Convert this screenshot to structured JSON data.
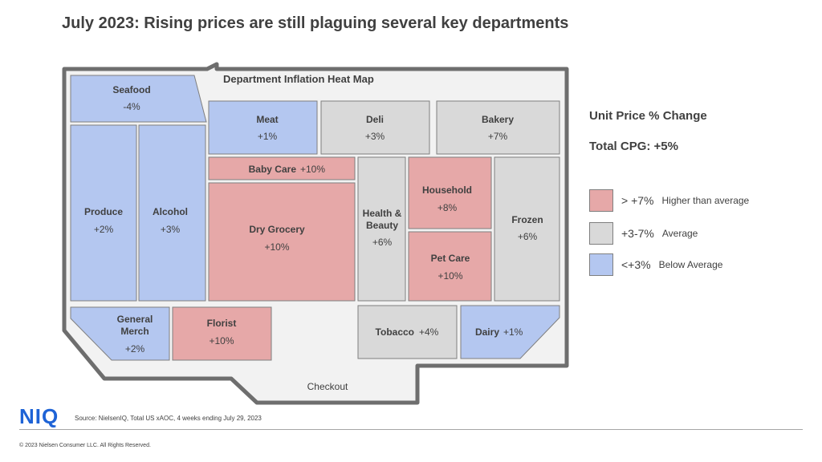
{
  "title": "July 2023: Rising prices are still plaguing several key departments",
  "map": {
    "title": "Department Inflation Heat Map",
    "checkout": "Checkout"
  },
  "departments": {
    "seafood": {
      "name": "Seafood",
      "value": "-4%",
      "category": "below"
    },
    "produce": {
      "name": "Produce",
      "value": "+2%",
      "category": "below"
    },
    "alcohol": {
      "name": "Alcohol",
      "value": "+3%",
      "category": "below"
    },
    "meat": {
      "name": "Meat",
      "value": "+1%",
      "category": "below"
    },
    "deli": {
      "name": "Deli",
      "value": "+3%",
      "category": "average"
    },
    "bakery": {
      "name": "Bakery",
      "value": "+7%",
      "category": "average"
    },
    "baby_care": {
      "name": "Baby Care",
      "value": "+10%",
      "category": "higher"
    },
    "dry_grocery": {
      "name": "Dry Grocery",
      "value": "+10%",
      "category": "higher"
    },
    "health_beauty": {
      "name_line1": "Health &",
      "name_line2": "Beauty",
      "value": "+6%",
      "category": "average"
    },
    "household": {
      "name": "Household",
      "value": "+8%",
      "category": "higher"
    },
    "pet_care": {
      "name": "Pet Care",
      "value": "+10%",
      "category": "higher"
    },
    "frozen": {
      "name": "Frozen",
      "value": "+6%",
      "category": "average"
    },
    "general_merch": {
      "name_line1": "General",
      "name_line2": "Merch",
      "value": "+2%",
      "category": "below"
    },
    "florist": {
      "name": "Florist",
      "value": "+10%",
      "category": "higher"
    },
    "tobacco": {
      "name": "Tobacco",
      "value": "+4%",
      "category": "average"
    },
    "dairy": {
      "name": "Dairy",
      "value": "+1%",
      "category": "below"
    }
  },
  "legend": {
    "title": "Unit Price % Change",
    "total": "Total CPG:  +5%",
    "items": [
      {
        "range": "> +7%",
        "desc": "Higher than average",
        "color": "#e6a8a8"
      },
      {
        "range": "+3-7%",
        "desc": "Average",
        "color": "#d9d9d9"
      },
      {
        "range": "<+3%",
        "desc": "Below Average",
        "color": "#b4c7f0"
      }
    ]
  },
  "colors": {
    "higher": "#e6a8a8",
    "average": "#d9d9d9",
    "below": "#b4c7f0",
    "outline": "#6e6e6e",
    "floor": "#f2f2f2"
  },
  "logo": "NIQ",
  "source": "Source: NielsenIQ, Total US xAOC,  4 weeks ending July 29, 2023",
  "copyright": "© 2023 Nielsen Consumer LLC. All Rights Reserved."
}
